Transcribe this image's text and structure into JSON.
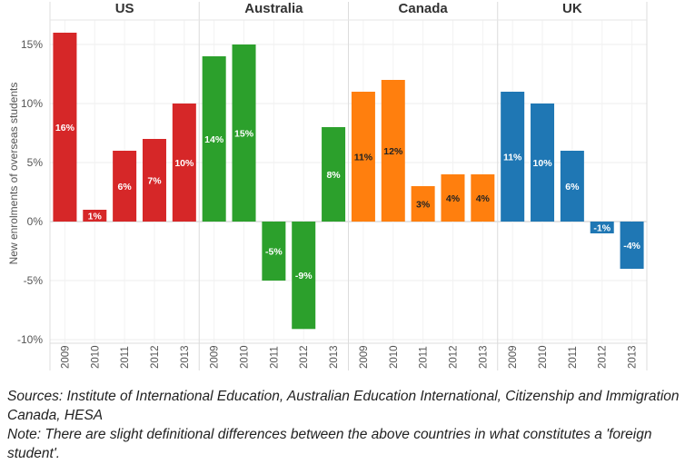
{
  "chart_data": {
    "type": "bar",
    "ylabel": "New enrolments of overseas students",
    "ylim": [
      -10,
      17
    ],
    "yticks": [
      15,
      10,
      5,
      0,
      -5,
      -10
    ],
    "ytick_labels": [
      "15%",
      "10%",
      "5%",
      "0%",
      "-5%",
      "-10%"
    ],
    "categories": [
      "2009",
      "2010",
      "2011",
      "2012",
      "2013"
    ],
    "series": [
      {
        "name": "US",
        "color": "#d62728",
        "values": [
          16,
          1,
          6,
          7,
          10
        ],
        "labels": [
          "16%",
          "1%",
          "6%",
          "7%",
          "10%"
        ]
      },
      {
        "name": "Australia",
        "color": "#2ca02c",
        "values": [
          14,
          15,
          -5,
          -9.1,
          8
        ],
        "labels": [
          "14%",
          "15%",
          "-5%",
          "-9%",
          "8%"
        ]
      },
      {
        "name": "Canada",
        "color": "#ff7f0e",
        "values": [
          11,
          12,
          3,
          4,
          4
        ],
        "labels": [
          "11%",
          "12%",
          "3%",
          "4%",
          "4%"
        ]
      },
      {
        "name": "UK",
        "color": "#1f77b4",
        "values": [
          11,
          10,
          6,
          -1,
          -4
        ],
        "labels": [
          "11%",
          "10%",
          "6%",
          "-1%",
          "-4%"
        ]
      }
    ],
    "grid": true
  },
  "notes": {
    "sources": "Sources: Institute of International Education, Australian Education International, Citizenship and Immigration Canada, HESA",
    "note": "Note: There are slight definitional differences between the above countries in what constitutes a 'foreign student'."
  }
}
